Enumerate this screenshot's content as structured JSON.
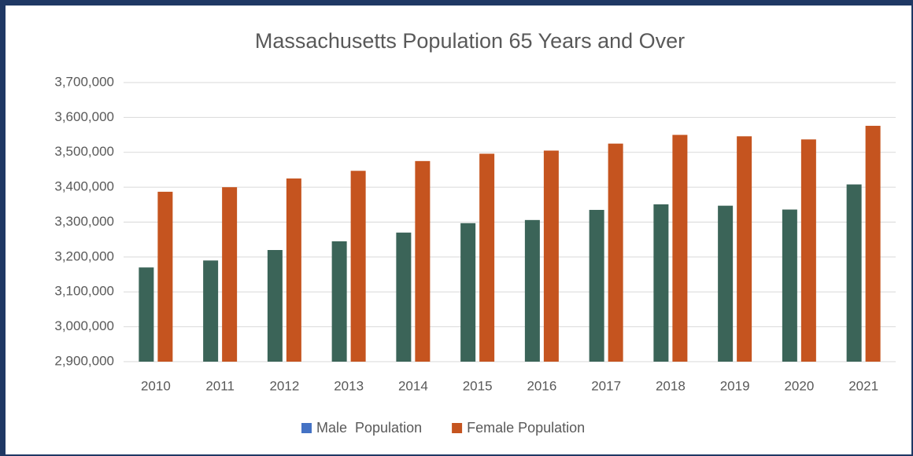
{
  "chart_data": {
    "type": "bar",
    "title": "Massachusetts Population 65 Years and Over",
    "categories": [
      "2010",
      "2011",
      "2012",
      "2013",
      "2014",
      "2015",
      "2016",
      "2017",
      "2018",
      "2019",
      "2020",
      "2021"
    ],
    "series": [
      {
        "name": "Male  Population",
        "color": "#3b6458",
        "legend_color": "#4472c4",
        "values": [
          3170000,
          3190000,
          3220000,
          3245000,
          3270000,
          3297000,
          3306000,
          3335000,
          3351000,
          3347000,
          3336000,
          3408000
        ]
      },
      {
        "name": "Female Population",
        "color": "#c5541f",
        "legend_color": "#c5541f",
        "values": [
          3387000,
          3400000,
          3425000,
          3447000,
          3475000,
          3496000,
          3505000,
          3525000,
          3550000,
          3546000,
          3537000,
          3576000
        ]
      }
    ],
    "ylim": [
      2900000,
      3700000
    ],
    "yticks": [
      {
        "value": 2900000,
        "label": "2,900,000"
      },
      {
        "value": 3000000,
        "label": "3,000,000"
      },
      {
        "value": 3100000,
        "label": "3,100,000"
      },
      {
        "value": 3200000,
        "label": "3,200,000"
      },
      {
        "value": 3300000,
        "label": "3,300,000"
      },
      {
        "value": 3400000,
        "label": "3,400,000"
      },
      {
        "value": 3500000,
        "label": "3,500,000"
      },
      {
        "value": 3600000,
        "label": "3,600,000"
      },
      {
        "value": 3700000,
        "label": "3,700,000"
      }
    ],
    "grid": true,
    "legend": "bottom"
  }
}
